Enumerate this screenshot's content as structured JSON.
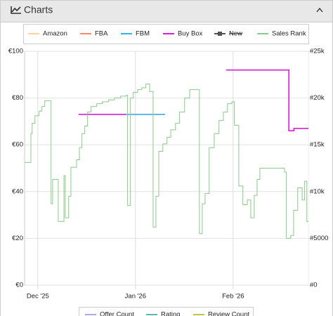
{
  "header": {
    "title": "Charts"
  },
  "chart_data": {
    "type": "step",
    "xlim": [
      -4.2,
      85.9
    ],
    "xticks": [
      {
        "value": 0,
        "label": "Dec '25"
      },
      {
        "value": 31,
        "label": "Jan '26"
      },
      {
        "value": 62,
        "label": "Feb '26"
      }
    ],
    "ylim": [
      0,
      100
    ],
    "yticks": [
      {
        "value": 0,
        "label": "€0"
      },
      {
        "value": 20,
        "label": "€20"
      },
      {
        "value": 40,
        "label": "€40"
      },
      {
        "value": 60,
        "label": "€60"
      },
      {
        "value": 80,
        "label": "€80"
      },
      {
        "value": 100,
        "label": "€100"
      }
    ],
    "y2lim": [
      0,
      25000
    ],
    "y2ticks": [
      {
        "value": 0,
        "label": "#0"
      },
      {
        "value": 5000,
        "label": "#5000"
      },
      {
        "value": 10000,
        "label": "#10k"
      },
      {
        "value": 15000,
        "label": "#15k"
      },
      {
        "value": 20000,
        "label": "#20k"
      },
      {
        "value": 25000,
        "label": "#25k"
      }
    ],
    "grid": true,
    "series": [
      {
        "name": "Amazon",
        "color": "#f8d39b",
        "x": [],
        "values": []
      },
      {
        "name": "FBA",
        "color": "#ff8866",
        "x": [],
        "values": []
      },
      {
        "name": "FBM",
        "color": "#39aee6",
        "x": [
          28.1,
          40.4
        ],
        "values": [
          73,
          null
        ]
      },
      {
        "name": "Buy Box",
        "color": "#d61fd6",
        "x": [
          12.9,
          28.1,
          59.8,
          79.7,
          81.3
        ],
        "values": [
          73,
          null,
          92,
          66,
          67
        ]
      },
      {
        "name": "New",
        "color": "#555555",
        "hidden": true,
        "x": [],
        "values": []
      },
      {
        "name": "Sales Rank",
        "color": "#8cc98c",
        "axis": "y2",
        "x": [
          -4.2,
          -2.2,
          -1.8,
          -0.9,
          0.4,
          1.3,
          2.2,
          4.2,
          4.7,
          6.5,
          8.3,
          8.7,
          9.8,
          10.5,
          12.3,
          13.2,
          14.0,
          14.9,
          15.8,
          16.9,
          18.7,
          20.5,
          22.5,
          24.3,
          26.3,
          28.1,
          28.5,
          29.4,
          30.3,
          31.7,
          33.0,
          34.3,
          35.5,
          36.6,
          37.5,
          38.4,
          39.7,
          41.0,
          42.2,
          43.7,
          45.0,
          46.6,
          48.2,
          51.3,
          52.2,
          53.1,
          54.4,
          56.0,
          57.5,
          58.9,
          60.2,
          61.6,
          62.4,
          63.8,
          65.1,
          66.5,
          67.6,
          68.7,
          69.6,
          70.5,
          78.3,
          78.9,
          80.3,
          81.2,
          82.5,
          83.9,
          84.7,
          85.4
        ],
        "values": [
          13100,
          16200,
          17300,
          18100,
          18600,
          19100,
          19700,
          8700,
          11300,
          6800,
          11700,
          7200,
          9500,
          12600,
          13400,
          14700,
          16200,
          17000,
          18500,
          19100,
          19400,
          19600,
          19800,
          20000,
          20200,
          20300,
          8500,
          20000,
          20600,
          20900,
          21100,
          21500,
          20700,
          6200,
          9500,
          14300,
          15100,
          15800,
          16600,
          17300,
          18500,
          20000,
          20900,
          5500,
          8700,
          9800,
          14700,
          16200,
          17600,
          18500,
          19400,
          19600,
          17100,
          10600,
          8600,
          9100,
          7200,
          9600,
          11300,
          12500,
          12100,
          5000,
          5300,
          8000,
          10400,
          9100,
          11100,
          6800
        ]
      }
    ]
  },
  "next_chart_legend": [
    {
      "name": "Offer Count",
      "color": "#b6a9e8"
    },
    {
      "name": "Rating",
      "color": "#5cb8a8"
    },
    {
      "name": "Review Count",
      "color": "#c8c44a"
    }
  ]
}
